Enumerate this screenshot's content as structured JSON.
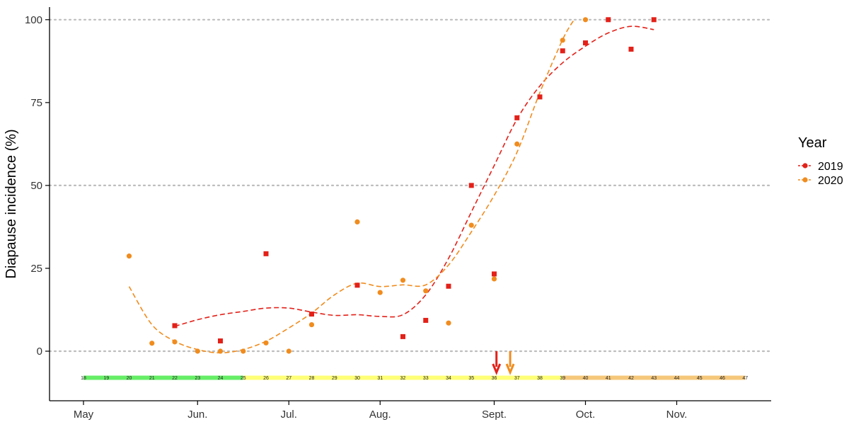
{
  "chart_data": {
    "type": "scatter",
    "title": "",
    "xlabel": "",
    "ylabel": "Diapause incidence (%)",
    "ylim": [
      -13,
      103
    ],
    "xlim": [
      17.4,
      48.3
    ],
    "grid": "horizontal dotted at 0, 50, 100",
    "y_ticks": [
      0,
      25,
      50,
      75,
      100
    ],
    "y_tick_labels": [
      "0",
      "25",
      "50",
      "75",
      "100"
    ],
    "month_ticks": [
      {
        "label": "May",
        "week": 18
      },
      {
        "label": "Jun.",
        "week": 23
      },
      {
        "label": "Jul.",
        "week": 27
      },
      {
        "label": "Aug.",
        "week": 31
      },
      {
        "label": "Sept.",
        "week": 36
      },
      {
        "label": "Oct.",
        "week": 40
      },
      {
        "label": "Nov.",
        "week": 44
      }
    ],
    "week_bar": {
      "y": -8,
      "weeks": [
        "18",
        "19",
        "20",
        "21",
        "22",
        "23",
        "24",
        "25",
        "26",
        "27",
        "28",
        "29",
        "30",
        "31",
        "32",
        "33",
        "34",
        "35",
        "36",
        "37",
        "38",
        "39",
        "40",
        "41",
        "42",
        "43",
        "44",
        "45",
        "46",
        "47"
      ],
      "segments": [
        {
          "from": 18,
          "to": 25,
          "color": "#66ee66"
        },
        {
          "from": 25,
          "to": 39,
          "color": "#ffff77"
        },
        {
          "from": 39,
          "to": 47,
          "color": "#f5c77a"
        }
      ]
    },
    "arrows": [
      {
        "week": 36.1,
        "color": "#e32119"
      },
      {
        "week": 36.7,
        "color": "#f08c1e"
      }
    ],
    "legend": {
      "title": "Year",
      "position": "right"
    },
    "series": [
      {
        "name": "2019",
        "color": "#e32119",
        "marker": "square",
        "points": [
          {
            "x": 22,
            "y": 7.7
          },
          {
            "x": 24,
            "y": 3.1
          },
          {
            "x": 26,
            "y": 29.4
          },
          {
            "x": 28,
            "y": 11.2
          },
          {
            "x": 30,
            "y": 19.9
          },
          {
            "x": 32,
            "y": 4.4
          },
          {
            "x": 33,
            "y": 9.3
          },
          {
            "x": 34,
            "y": 19.6
          },
          {
            "x": 35,
            "y": 50.0
          },
          {
            "x": 36,
            "y": 23.3
          },
          {
            "x": 37,
            "y": 70.4
          },
          {
            "x": 38,
            "y": 76.7
          },
          {
            "x": 39,
            "y": 90.6
          },
          {
            "x": 40,
            "y": 93.0
          },
          {
            "x": 41,
            "y": 100
          },
          {
            "x": 42,
            "y": 91.1
          },
          {
            "x": 43,
            "y": 100
          }
        ],
        "trend": [
          {
            "x": 22,
            "y": 7.5
          },
          {
            "x": 23,
            "y": 9.5
          },
          {
            "x": 24,
            "y": 11.0
          },
          {
            "x": 25,
            "y": 12.0
          },
          {
            "x": 26,
            "y": 13.0
          },
          {
            "x": 27,
            "y": 13.0
          },
          {
            "x": 28,
            "y": 11.8
          },
          {
            "x": 29,
            "y": 10.8
          },
          {
            "x": 30,
            "y": 11.0
          },
          {
            "x": 31,
            "y": 10.5
          },
          {
            "x": 32,
            "y": 11.0
          },
          {
            "x": 33,
            "y": 17.0
          },
          {
            "x": 34,
            "y": 28.0
          },
          {
            "x": 35,
            "y": 42.0
          },
          {
            "x": 36,
            "y": 56.0
          },
          {
            "x": 37,
            "y": 70.0
          },
          {
            "x": 38,
            "y": 80.0
          },
          {
            "x": 39,
            "y": 87.0
          },
          {
            "x": 40,
            "y": 92.0
          },
          {
            "x": 41,
            "y": 96.0
          },
          {
            "x": 42,
            "y": 98.0
          },
          {
            "x": 43,
            "y": 97.0
          }
        ]
      },
      {
        "name": "2020",
        "color": "#f08c1e",
        "marker": "circle",
        "points": [
          {
            "x": 20,
            "y": 28.7
          },
          {
            "x": 21,
            "y": 2.4
          },
          {
            "x": 22,
            "y": 2.8
          },
          {
            "x": 23,
            "y": 0
          },
          {
            "x": 24,
            "y": 0
          },
          {
            "x": 25,
            "y": 0
          },
          {
            "x": 26,
            "y": 2.5
          },
          {
            "x": 27,
            "y": 0
          },
          {
            "x": 28,
            "y": 8.0
          },
          {
            "x": 30,
            "y": 39.0
          },
          {
            "x": 31,
            "y": 17.7
          },
          {
            "x": 32,
            "y": 21.4
          },
          {
            "x": 33,
            "y": 18.2
          },
          {
            "x": 34,
            "y": 8.5
          },
          {
            "x": 35,
            "y": 38.0
          },
          {
            "x": 36,
            "y": 21.8
          },
          {
            "x": 37,
            "y": 62.5
          },
          {
            "x": 39,
            "y": 93.8
          },
          {
            "x": 40,
            "y": 100
          }
        ],
        "trend": [
          {
            "x": 20,
            "y": 19.5
          },
          {
            "x": 21,
            "y": 8.0
          },
          {
            "x": 22,
            "y": 3.0
          },
          {
            "x": 23,
            "y": 0.5
          },
          {
            "x": 24,
            "y": -0.5
          },
          {
            "x": 25,
            "y": 0.5
          },
          {
            "x": 26,
            "y": 3.0
          },
          {
            "x": 27,
            "y": 7.0
          },
          {
            "x": 28,
            "y": 11.5
          },
          {
            "x": 29,
            "y": 17.0
          },
          {
            "x": 30,
            "y": 20.5
          },
          {
            "x": 31,
            "y": 19.5
          },
          {
            "x": 32,
            "y": 20.0
          },
          {
            "x": 33,
            "y": 20.0
          },
          {
            "x": 34,
            "y": 26.0
          },
          {
            "x": 35,
            "y": 36.0
          },
          {
            "x": 36,
            "y": 47.0
          },
          {
            "x": 37,
            "y": 60.0
          },
          {
            "x": 38,
            "y": 78.0
          },
          {
            "x": 39,
            "y": 94.0
          },
          {
            "x": 39.5,
            "y": 100
          }
        ]
      }
    ]
  }
}
